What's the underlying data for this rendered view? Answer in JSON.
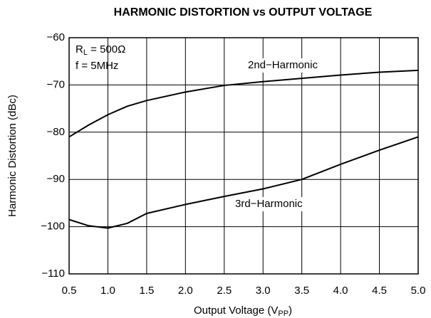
{
  "chart_data": {
    "type": "line",
    "title": "HARMONIC DISTORTION vs OUTPUT VOLTAGE",
    "x_label": {
      "main": "Output Voltage (V",
      "sub": "PP",
      "end": ")"
    },
    "y_label": "Harmonic Distortion (dBc)",
    "x": [
      0.5,
      0.75,
      1.0,
      1.25,
      1.5,
      2.0,
      2.5,
      3.0,
      3.5,
      4.0,
      4.5,
      5.0
    ],
    "series": [
      {
        "name": "2nd−Harmonic",
        "color": "#000000",
        "values": [
          -81,
          -78.5,
          -76.3,
          -74.5,
          -73.3,
          -71.5,
          -70.1,
          -69.3,
          -68.6,
          -67.9,
          -67.3,
          -66.9
        ]
      },
      {
        "name": "3rd−Harmonic",
        "color": "#000000",
        "values": [
          -98.5,
          -99.8,
          -100.3,
          -99.3,
          -97.2,
          -95.3,
          -93.6,
          -92.0,
          -90.0,
          -86.8,
          -83.8,
          -81.0
        ]
      }
    ],
    "annotations": [
      {
        "main": "R",
        "sub": "L",
        "end": " = 500Ω"
      },
      {
        "main": "f = 5MHz"
      }
    ],
    "xlim": [
      0.5,
      5.0
    ],
    "xticks": [
      0.5,
      {
        "value": 1.0,
        "label": "1.0"
      },
      1.5,
      {
        "value": 2.0,
        "label": "2.0"
      },
      2.5,
      {
        "value": 3.0,
        "label": "3.0"
      },
      3.5,
      {
        "value": 4.0,
        "label": "4.0"
      },
      4.5,
      {
        "value": 5.0,
        "label": "5.0"
      }
    ],
    "ylim": [
      -110,
      -60
    ],
    "yticks": [
      {
        "value": -110,
        "label": "−110"
      },
      {
        "value": -100,
        "label": "−100"
      },
      {
        "value": -90,
        "label": "−90"
      },
      {
        "value": -80,
        "label": "−80"
      },
      {
        "value": -70,
        "label": "−70"
      },
      {
        "value": -60,
        "label": "−60"
      }
    ],
    "grid": true
  }
}
